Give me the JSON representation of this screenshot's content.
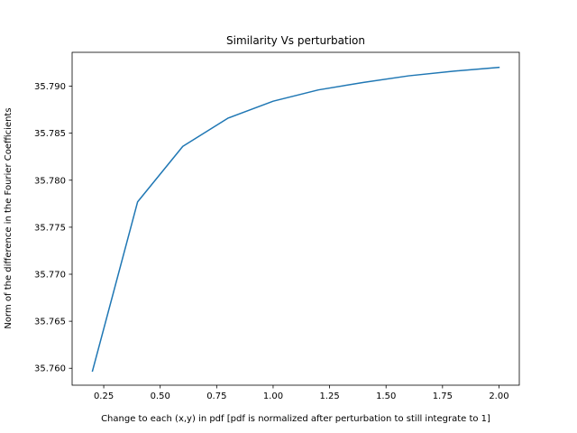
{
  "chart_data": {
    "type": "line",
    "title": "Similarity Vs perturbation",
    "xlabel": "Change to each (x,y) in pdf [pdf is normalized after perturbation to still integrate to 1]",
    "ylabel": "Norm of the difference in the Fourier Coefficients",
    "xlim": [
      0.11,
      2.09
    ],
    "ylim": [
      35.7582,
      35.7936
    ],
    "xticks": [
      0.25,
      0.5,
      0.75,
      1.0,
      1.25,
      1.5,
      1.75,
      2.0
    ],
    "xtick_labels": [
      "0.25",
      "0.50",
      "0.75",
      "1.00",
      "1.25",
      "1.50",
      "1.75",
      "2.00"
    ],
    "yticks": [
      35.76,
      35.765,
      35.77,
      35.775,
      35.78,
      35.785,
      35.79
    ],
    "ytick_labels": [
      "35.760",
      "35.765",
      "35.770",
      "35.775",
      "35.780",
      "35.785",
      "35.790"
    ],
    "grid": false,
    "series": [
      {
        "color": "#1f77b4",
        "x": [
          0.2,
          0.4,
          0.6,
          0.8,
          1.0,
          1.2,
          1.4,
          1.6,
          1.8,
          2.0
        ],
        "y": [
          35.7597,
          35.7777,
          35.7836,
          35.7866,
          35.7884,
          35.7896,
          35.7904,
          35.7911,
          35.7916,
          35.792
        ]
      }
    ]
  }
}
